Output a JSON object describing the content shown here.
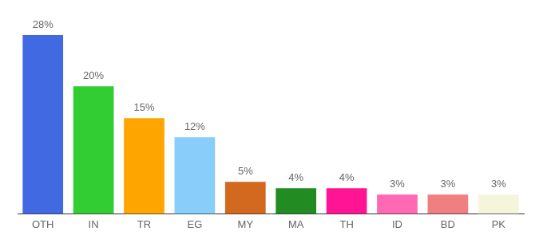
{
  "chart_data": {
    "type": "bar",
    "categories": [
      "OTH",
      "IN",
      "TR",
      "EG",
      "MY",
      "MA",
      "TH",
      "ID",
      "BD",
      "PK"
    ],
    "values": [
      28,
      20,
      15,
      12,
      5,
      4,
      4,
      3,
      3,
      3
    ],
    "value_labels": [
      "28%",
      "20%",
      "15%",
      "12%",
      "5%",
      "4%",
      "4%",
      "3%",
      "3%",
      "3%"
    ],
    "colors": [
      "#4169e1",
      "#32cd32",
      "#ffa500",
      "#87cefa",
      "#d2691e",
      "#228b22",
      "#ff1493",
      "#ff69b4",
      "#f08080",
      "#f5f5dc"
    ],
    "data_labels": true,
    "tick_labels": "x",
    "grid": false
  }
}
